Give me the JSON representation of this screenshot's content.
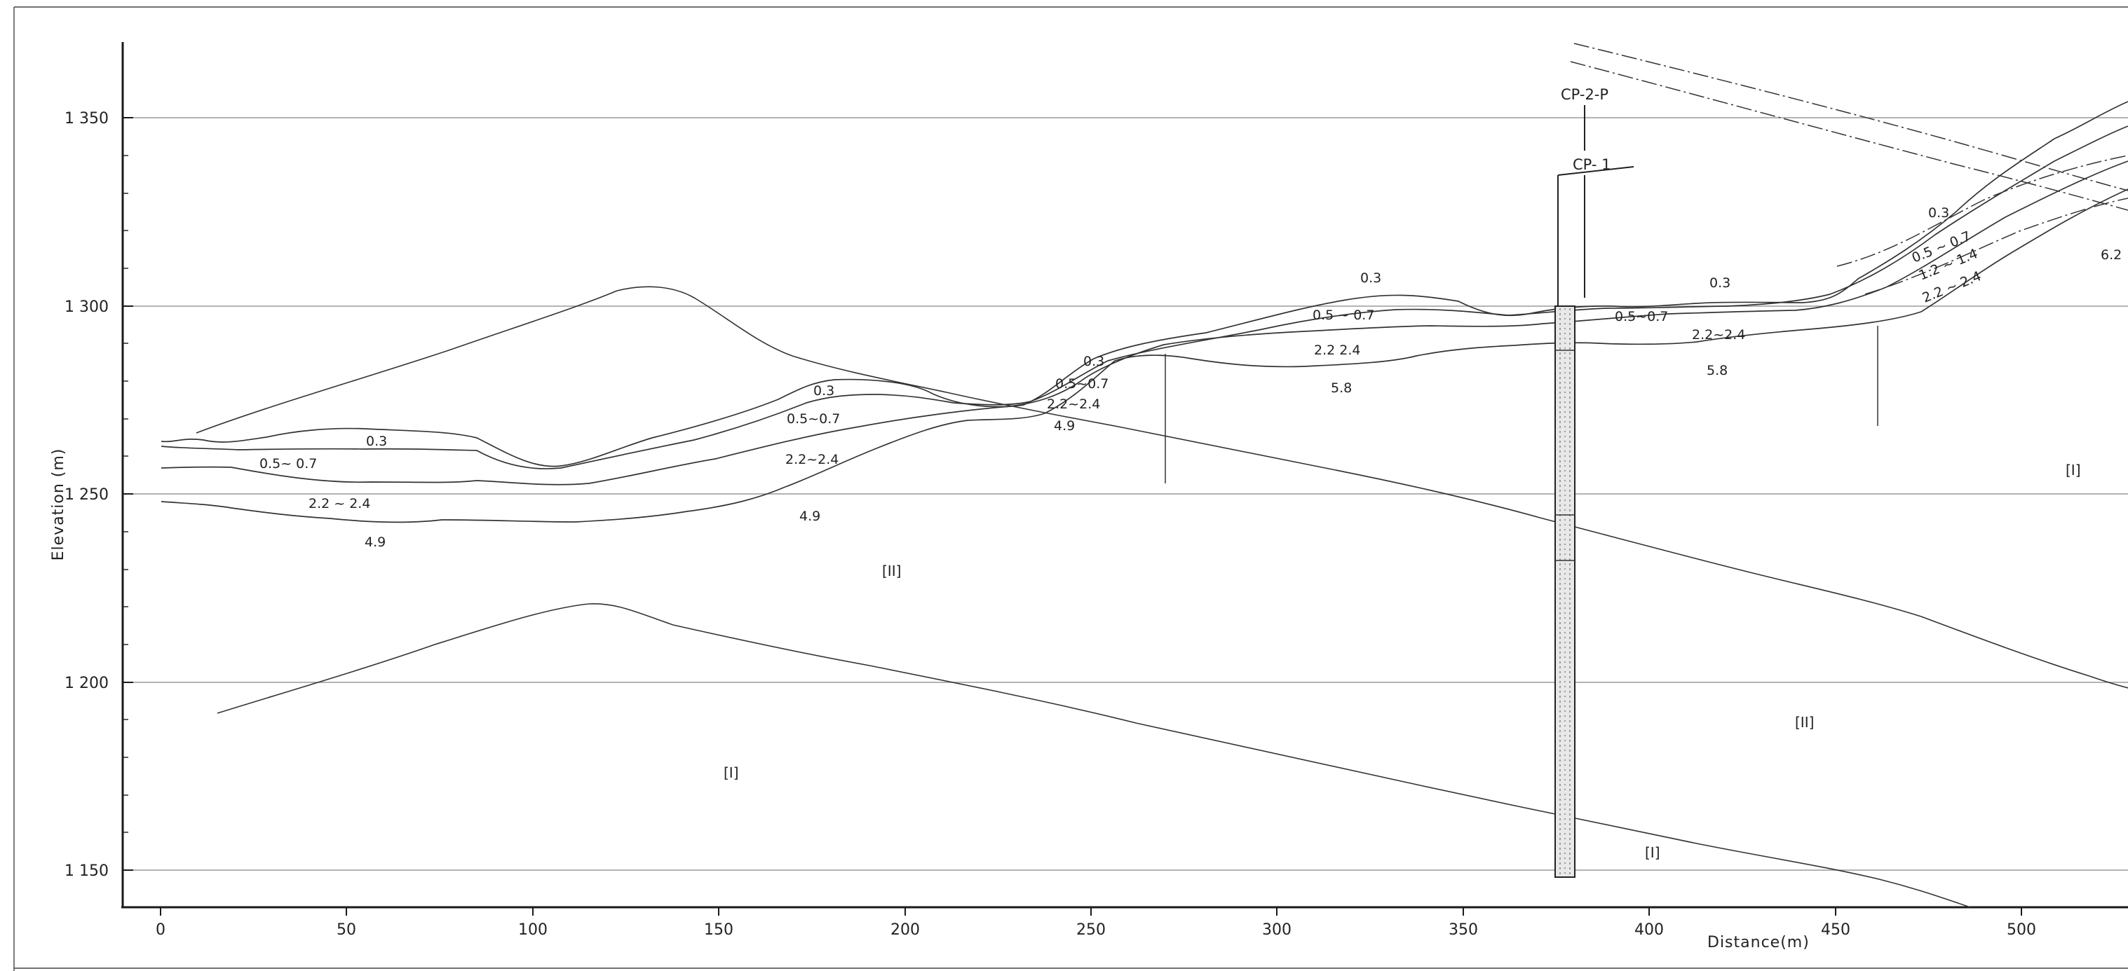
{
  "axes": {
    "y_title": "Elevation (m)",
    "x_title": "Distance(m)",
    "y_ticks": [
      {
        "value": 1350,
        "label": "1 350"
      },
      {
        "value": 1300,
        "label": "1 300"
      },
      {
        "value": 1250,
        "label": "1 250"
      },
      {
        "value": 1200,
        "label": "1 200"
      },
      {
        "value": 1150,
        "label": "1 150"
      }
    ],
    "x_ticks": [
      "0",
      "50",
      "100",
      "150",
      "200",
      "250",
      "300",
      "350",
      "400",
      "450",
      "500"
    ]
  },
  "boreholes": {
    "cp2p": "CP-2-P",
    "cp1": "CP- 1"
  },
  "velocity_labels": {
    "l_03": "0.3",
    "l_0507": "0.5~ 0.7",
    "l_2224": "2.2  ~  2.4",
    "l_49": "4.9",
    "m_03": "0.3",
    "m_0507": "0.5~0.7",
    "m_2224": "2.2~2.4",
    "m_49": "4.9",
    "c_03": "0.3",
    "c_0507": "0.5~0.7",
    "c_2224": "2.2~2.4",
    "c_49": "4.9",
    "r_03": "0.3",
    "r_0507": "0.5 ~ 0.7",
    "r_2224": "2.2   2.4",
    "r_58": "5.8",
    "e_03": "0.3",
    "e_0507": "0.5~0.7",
    "e_2224": "2.2~2.4",
    "e_58": "5.8",
    "f_03": "0.3",
    "f_0507": "0.5 ~ 0.7",
    "f_1214": "1.2 ~ 1.4",
    "f_2224": "2.2 ~ 2.4",
    "f_62": "6.2"
  },
  "zone_labels": {
    "z_ii_left": "[II]",
    "z_i_left": "[I]",
    "z_ii_right": "[II]",
    "z_i_right": "[I]",
    "z_i_lower": "[I]"
  }
}
